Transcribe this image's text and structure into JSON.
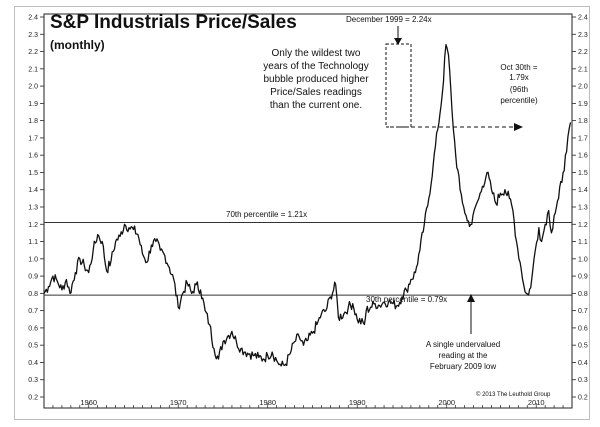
{
  "chart_data": {
    "type": "line",
    "title": "S&P Industrials Price/Sales",
    "subtitle": "(monthly)",
    "xlabel": "",
    "ylabel": "",
    "xlim": [
      1955,
      2014
    ],
    "ylim": [
      0.2,
      2.4
    ],
    "y_ticks": [
      "2.4",
      "2.3",
      "2.2",
      "2.1",
      "2.0",
      "1.9",
      "1.8",
      "1.7",
      "1.6",
      "1.5",
      "1.4",
      "1.3",
      "1.2",
      "1.1",
      "1.0",
      "0.9",
      "0.8",
      "0.7",
      "0.6",
      "0.5",
      "0.4",
      "0.3",
      "0.2"
    ],
    "x_ticks": [
      "1960",
      "1970",
      "1980",
      "1990",
      "2000",
      "2010"
    ],
    "grid": false,
    "series": [
      {
        "x": [
          1955.0,
          1955.5,
          1956.0,
          1956.5,
          1957.0,
          1957.5,
          1957.9,
          1958.5,
          1959.0,
          1959.5,
          1960.0,
          1960.5,
          1961.0,
          1961.5,
          1962.0,
          1962.5,
          1963.0,
          1963.5,
          1964.0,
          1964.5,
          1965.0,
          1965.5,
          1966.0,
          1966.5,
          1967.0,
          1967.5,
          1968.0,
          1968.5,
          1969.0,
          1969.5,
          1970.0,
          1970.5,
          1971.0,
          1971.5,
          1972.0,
          1972.5,
          1973.0,
          1973.5,
          1974.0,
          1974.5,
          1975.0,
          1975.5,
          1976.0,
          1976.5,
          1977.0,
          1977.5,
          1978.0,
          1978.5,
          1979.0,
          1979.5,
          1980.0,
          1980.5,
          1981.0,
          1981.5,
          1982.0,
          1982.5,
          1983.0,
          1983.5,
          1984.0,
          1984.5,
          1985.0,
          1985.5,
          1986.0,
          1986.5,
          1987.0,
          1987.6,
          1987.9,
          1988.5,
          1989.0,
          1989.5,
          1990.0,
          1990.8,
          1991.0,
          1991.5,
          1992.0,
          1992.5,
          1993.0,
          1993.5,
          1994.0,
          1994.5,
          1995.0,
          1995.5,
          1996.0,
          1996.5,
          1997.0,
          1997.5,
          1998.0,
          1998.5,
          1999.0,
          1999.5,
          1999.92,
          2000.2,
          2000.6,
          2001.0,
          2001.5,
          2001.9,
          2002.3,
          2002.8,
          2003.2,
          2003.6,
          2004.0,
          2004.5,
          2005.0,
          2005.5,
          2006.0,
          2006.5,
          2007.0,
          2007.4,
          2007.8,
          2008.2,
          2008.6,
          2008.9,
          2009.15,
          2009.5,
          2009.9,
          2010.3,
          2010.6,
          2011.0,
          2011.4,
          2011.7,
          2012.0,
          2012.5,
          2013.0,
          2013.4,
          2013.83
        ],
        "y": [
          0.8,
          0.84,
          0.9,
          0.87,
          0.82,
          0.88,
          0.8,
          0.92,
          1.0,
          0.96,
          0.92,
          1.05,
          1.14,
          1.1,
          0.93,
          0.99,
          1.1,
          1.13,
          1.2,
          1.18,
          1.17,
          1.14,
          1.03,
          0.98,
          1.08,
          1.1,
          1.05,
          1.02,
          0.95,
          0.88,
          0.72,
          0.8,
          0.86,
          0.8,
          0.85,
          0.82,
          0.7,
          0.62,
          0.48,
          0.42,
          0.52,
          0.55,
          0.58,
          0.52,
          0.48,
          0.46,
          0.45,
          0.44,
          0.43,
          0.42,
          0.44,
          0.46,
          0.41,
          0.38,
          0.39,
          0.45,
          0.52,
          0.55,
          0.5,
          0.53,
          0.57,
          0.62,
          0.68,
          0.7,
          0.78,
          0.85,
          0.66,
          0.68,
          0.72,
          0.74,
          0.65,
          0.62,
          0.7,
          0.72,
          0.74,
          0.73,
          0.75,
          0.75,
          0.74,
          0.73,
          0.78,
          0.82,
          0.88,
          0.92,
          1.05,
          1.2,
          1.35,
          1.55,
          1.75,
          1.95,
          2.24,
          2.18,
          1.85,
          1.6,
          1.4,
          1.3,
          1.22,
          1.2,
          1.3,
          1.35,
          1.42,
          1.5,
          1.4,
          1.32,
          1.38,
          1.4,
          1.35,
          1.28,
          1.1,
          0.98,
          0.85,
          0.8,
          0.79,
          0.88,
          1.05,
          1.18,
          1.1,
          1.2,
          1.28,
          1.15,
          1.25,
          1.35,
          1.5,
          1.62,
          1.79
        ]
      }
    ],
    "reference_lines": [
      {
        "label": "70th percentile = 1.21x",
        "value": 1.21
      },
      {
        "label": "30th percentile = 0.79x",
        "value": 0.79
      }
    ],
    "annotations": {
      "peak_label": "December 1999 = 2.24x",
      "bubble_note": [
        "Only the wildest two",
        "years of the Technology",
        "bubble produced higher",
        "Price/Sales readings",
        "than the current one."
      ],
      "current_note": [
        "Oct 30th =",
        "1.79x",
        "(96th",
        "percentile)"
      ],
      "low_note": [
        "A single undervalued",
        "reading at the",
        "February 2009 low"
      ],
      "copyright": "© 2013 The Leuthold Group"
    }
  }
}
